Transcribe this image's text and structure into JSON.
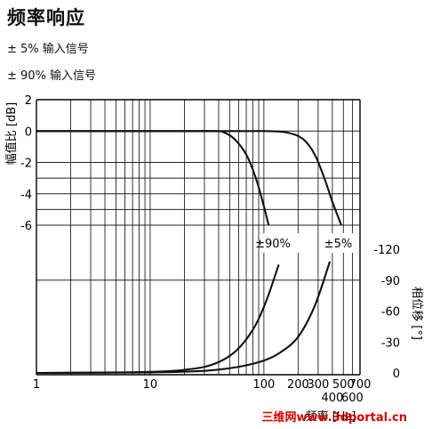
{
  "header": {
    "title": "频率响应",
    "legend_5": "± 5%  输入信号",
    "legend_90": "± 90%  输入信号"
  },
  "watermark": "三维网www.3dportal.cn",
  "chart_data": {
    "type": "line",
    "title": "频率响应",
    "xscale": "log",
    "xlabel": "频率 [Hz]",
    "xlim": [
      1,
      700
    ],
    "x_ticks": [
      {
        "label": "1",
        "value": 1
      },
      {
        "label": "10",
        "value": 10
      },
      {
        "label": "100",
        "value": 100
      },
      {
        "label": "200",
        "value": 200
      },
      {
        "label": "300",
        "value": 300
      },
      {
        "label": "400",
        "value": 400
      },
      {
        "label": "500",
        "value": 500
      },
      {
        "label": "600",
        "value": 600
      },
      {
        "label": "700",
        "value": 700
      }
    ],
    "ylabel_left": "幅值比 [dB]",
    "ylim_left": [
      -6,
      2
    ],
    "y_ticks_left": [
      {
        "label": "2",
        "value": 2
      },
      {
        "label": "0",
        "value": 0
      },
      {
        "label": "-2",
        "value": -2
      },
      {
        "label": "-4",
        "value": -4
      },
      {
        "label": "-6",
        "value": -6
      }
    ],
    "ylabel_right": "相位移 [°]",
    "ylim_right": [
      0,
      -120
    ],
    "y_ticks_right": [
      {
        "label": "-120",
        "value": -120
      },
      {
        "label": "-90",
        "value": -90
      },
      {
        "label": "-60",
        "value": -60
      },
      {
        "label": "-30",
        "value": -30
      },
      {
        "label": "0",
        "value": 0
      }
    ],
    "grid": true,
    "annotations": [
      {
        "label": "±90%",
        "x": 120,
        "y_phase": -125
      },
      {
        "label": "±5%",
        "x": 450,
        "y_phase": -125
      }
    ],
    "series": [
      {
        "name": "±90%",
        "axis": "amplitude",
        "x": [
          1,
          20,
          38,
          45,
          55,
          70,
          85,
          100,
          110
        ],
        "y": [
          0,
          0,
          0,
          -0.1,
          -0.5,
          -1.5,
          -3.0,
          -4.8,
          -6.0
        ]
      },
      {
        "name": "±5%",
        "axis": "amplitude",
        "x": [
          1,
          50,
          105,
          160,
          220,
          280,
          340,
          400,
          480
        ],
        "y": [
          0,
          0,
          0,
          -0.1,
          -0.5,
          -1.5,
          -3.0,
          -4.5,
          -6.0
        ]
      },
      {
        "name": "±90%",
        "axis": "phase",
        "x": [
          1,
          5,
          10,
          20,
          35,
          55,
          80,
          105,
          135
        ],
        "y": [
          0,
          -0.5,
          -1,
          -3,
          -8,
          -20,
          -42,
          -70,
          -105
        ]
      },
      {
        "name": "±5%",
        "axis": "phase",
        "x": [
          1,
          10,
          30,
          60,
          100,
          140,
          200,
          280,
          380
        ],
        "y": [
          0,
          -0.5,
          -2,
          -6,
          -12,
          -20,
          -35,
          -65,
          -108
        ]
      }
    ]
  }
}
